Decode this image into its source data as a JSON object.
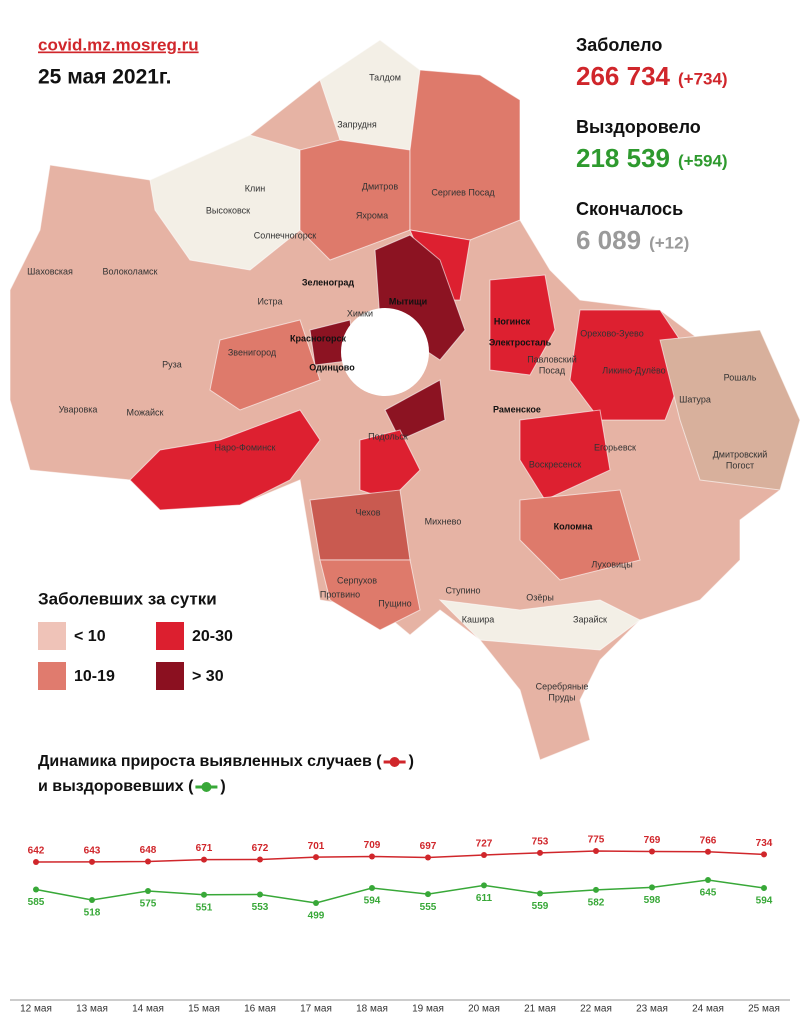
{
  "source": "covid.mz.mosreg.ru",
  "date": "25 мая 2021г.",
  "stats": [
    {
      "label": "Заболело",
      "value": "266 734",
      "delta": "(+734)",
      "color": "#d0262b"
    },
    {
      "label": "Выздоровело",
      "value": "218 539",
      "delta": "(+594)",
      "color": "#2e9a2e"
    },
    {
      "label": "Скончалось",
      "value": "6 089",
      "delta": "(+12)",
      "color": "#9a9a9a"
    }
  ],
  "legend": {
    "title": "Заболевших за сутки",
    "items": [
      {
        "label": "< 10",
        "color": "#efc3b8"
      },
      {
        "label": "20-30",
        "color": "#dc1f2f"
      },
      {
        "label": "10-19",
        "color": "#e07b6e"
      },
      {
        "label": "> 30",
        "color": "#8b1020"
      }
    ]
  },
  "map": {
    "labels": [
      "Талдом",
      "Запрудня",
      "Клин",
      "Высоковск",
      "Дмитров",
      "Яхрома",
      "Сергиев Посад",
      "Солнечногорск",
      "Шаховская",
      "Волоколамск",
      "Зеленоград",
      "Истра",
      "Мытищи",
      "Химки",
      "Ногинск",
      "Орехово-Зуево",
      "Красногорск",
      "Электросталь",
      "Звенигород",
      "Павловский",
      "Посад",
      "Одинцово",
      "Руза",
      "Ликино-Дулёво",
      "Рошаль",
      "Шатура",
      "Уваровка",
      "Можайск",
      "Раменское",
      "Подольск",
      "Наро-Фоминск",
      "Егорьевск",
      "Дмитровский",
      "Погост",
      "Воскресенск",
      "Чехов",
      "Михнево",
      "Коломна",
      "Луховицы",
      "Серпухов",
      "Ступино",
      "Протвино",
      "Озёры",
      "Пущино",
      "Кашира",
      "Зарайск",
      "Серебряные",
      "Пруды"
    ]
  },
  "chart_data": {
    "type": "line",
    "title": [
      "Динамика прироста выявленных случаев (",
      ")",
      "и выздоровевших (",
      ")"
    ],
    "categories": [
      "12 мая",
      "13 мая",
      "14 мая",
      "15 мая",
      "16 мая",
      "17 мая",
      "18 мая",
      "19 мая",
      "20 мая",
      "21 мая",
      "22 мая",
      "23 мая",
      "24 мая",
      "25 мая"
    ],
    "series": [
      {
        "color": "#d0262b",
        "values": [
          642,
          643,
          648,
          671,
          672,
          701,
          709,
          697,
          727,
          753,
          775,
          769,
          766,
          734
        ]
      },
      {
        "color": "#38a838",
        "values": [
          585,
          518,
          575,
          551,
          553,
          499,
          594,
          555,
          611,
          559,
          582,
          598,
          645,
          594
        ]
      }
    ]
  }
}
